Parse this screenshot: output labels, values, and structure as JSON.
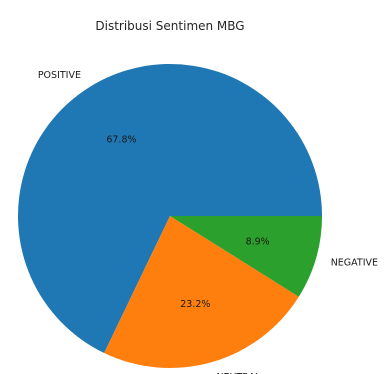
{
  "chart_data": {
    "type": "pie",
    "title": "Distribusi Sentimen MBG",
    "slices": [
      {
        "label": "POSITIVE",
        "value": 67.8,
        "pct_text": "67.8%",
        "color": "#1f77b4"
      },
      {
        "label": "NEUTRAL",
        "value": 23.2,
        "pct_text": "23.2%",
        "color": "#ff7f0e"
      },
      {
        "label": "NEGATIVE",
        "value": 8.9,
        "pct_text": "8.9%",
        "color": "#2ca02c"
      }
    ]
  }
}
